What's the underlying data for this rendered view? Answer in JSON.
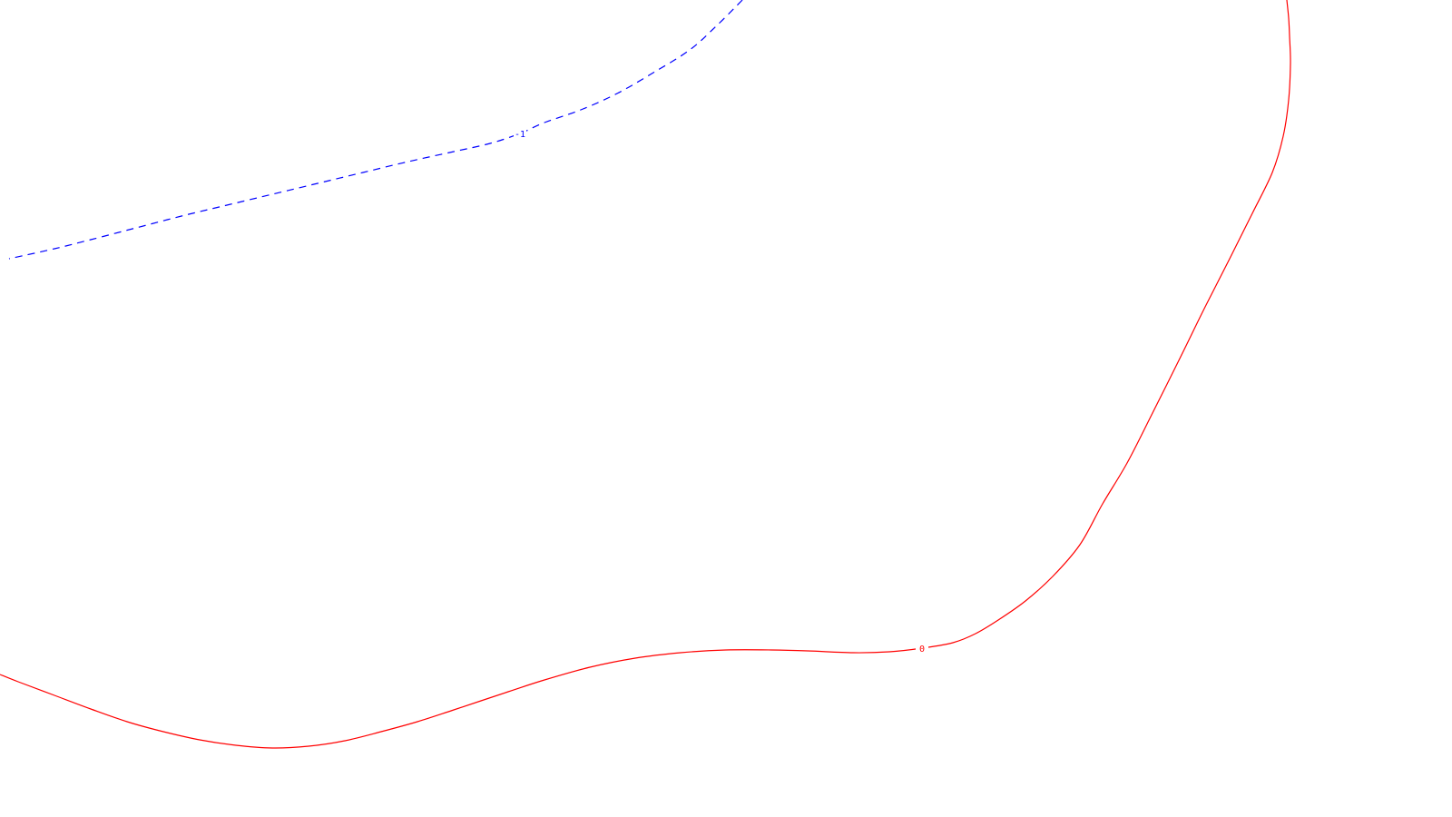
{
  "chart_data": {
    "type": "contour",
    "grid": false,
    "legend": "none",
    "series": [
      {
        "level": 0,
        "label": "0",
        "color": "#ff0000",
        "line_style": "solid",
        "label_at": [
          1016,
          714
        ],
        "x": [
          1418,
          1420,
          1421,
          1422,
          1420,
          1414,
          1402,
          1380,
          1355,
          1328,
          1300,
          1270,
          1242,
          1215,
          1190,
          1160,
          1130,
          1100,
          1075,
          1050,
          1016,
          980,
          940,
          890,
          850,
          800,
          750,
          700,
          650,
          600,
          560,
          500,
          460,
          420,
          380,
          340,
          300,
          260,
          220,
          180,
          140,
          100,
          60,
          20,
          0
        ],
        "y": [
          0,
          20,
          40,
          70,
          110,
          150,
          190,
          235,
          285,
          338,
          395,
          455,
          510,
          555,
          600,
          635,
          662,
          683,
          698,
          708,
          714,
          718,
          719,
          717,
          716,
          716,
          719,
          725,
          735,
          749,
          762,
          782,
          795,
          806,
          816,
          822,
          824,
          821,
          815,
          806,
          795,
          781,
          766,
          751,
          743
        ]
      },
      {
        "level": -1,
        "label": "-1",
        "color": "#0000ff",
        "line_style": "dashed",
        "label_at": [
          573,
          147
        ],
        "x": [
          818,
          790,
          760,
          720,
          680,
          640,
          600,
          573,
          540,
          500,
          450,
          400,
          350,
          300,
          250,
          200,
          150,
          100,
          60,
          10
        ],
        "y": [
          0,
          28,
          55,
          80,
          103,
          121,
          135,
          147,
          158,
          167,
          178,
          190,
          202,
          214,
          226,
          238,
          251,
          264,
          274,
          285
        ]
      }
    ]
  }
}
